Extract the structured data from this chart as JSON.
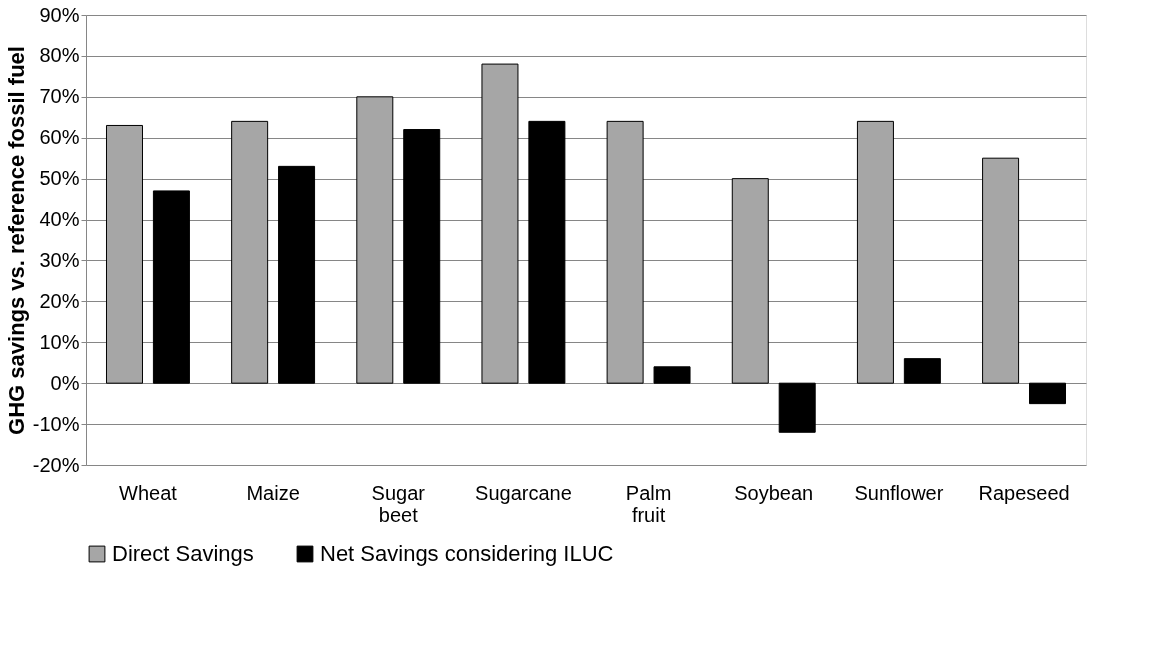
{
  "chart_data": {
    "type": "bar",
    "ylabel": "GHG savings vs. reference fossil fuel",
    "categories": [
      "Wheat",
      "Maize",
      "Sugar beet",
      "Sugarcane",
      "Palm fruit",
      "Soybean",
      "Sunflower",
      "Rapeseed"
    ],
    "series": [
      {
        "name": "Direct Savings",
        "color": "#a6a6a6",
        "values": [
          63,
          64,
          70,
          78,
          64,
          50,
          64,
          55
        ]
      },
      {
        "name": "Net Savings considering ILUC",
        "color": "#000000",
        "values": [
          47,
          53,
          62,
          64,
          4,
          -12,
          6,
          -5
        ]
      }
    ],
    "ylim": [
      -20,
      90
    ],
    "yticks": [
      {
        "value": -20,
        "label": "-20%"
      },
      {
        "value": -10,
        "label": "-10%"
      },
      {
        "value": 0,
        "label": "0%"
      },
      {
        "value": 10,
        "label": "10%"
      },
      {
        "value": 20,
        "label": "20%"
      },
      {
        "value": 30,
        "label": "30%"
      },
      {
        "value": 40,
        "label": "40%"
      },
      {
        "value": 50,
        "label": "50%"
      },
      {
        "value": 60,
        "label": "60%"
      },
      {
        "value": 70,
        "label": "70%"
      },
      {
        "value": 80,
        "label": "80%"
      },
      {
        "value": 90,
        "label": "90%"
      }
    ],
    "grid": "y",
    "legend": "bottom"
  }
}
